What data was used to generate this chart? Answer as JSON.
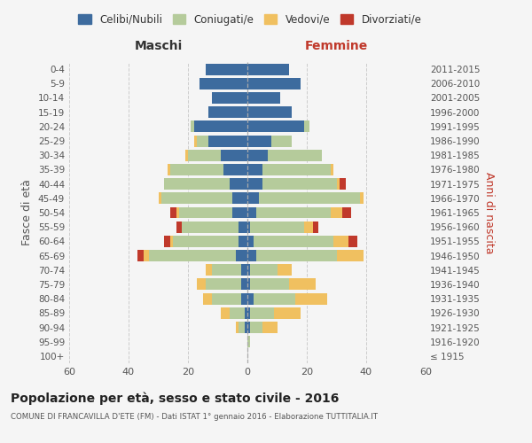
{
  "age_groups": [
    "100+",
    "95-99",
    "90-94",
    "85-89",
    "80-84",
    "75-79",
    "70-74",
    "65-69",
    "60-64",
    "55-59",
    "50-54",
    "45-49",
    "40-44",
    "35-39",
    "30-34",
    "25-29",
    "20-24",
    "15-19",
    "10-14",
    "5-9",
    "0-4"
  ],
  "birth_years": [
    "≤ 1915",
    "1916-1920",
    "1921-1925",
    "1926-1930",
    "1931-1935",
    "1936-1940",
    "1941-1945",
    "1946-1950",
    "1951-1955",
    "1956-1960",
    "1961-1965",
    "1966-1970",
    "1971-1975",
    "1976-1980",
    "1981-1985",
    "1986-1990",
    "1991-1995",
    "1996-2000",
    "2001-2005",
    "2006-2010",
    "2011-2015"
  ],
  "colors": {
    "celibi": "#3d6b9e",
    "coniugati": "#b5cb9b",
    "vedovi": "#f0c060",
    "divorziati": "#c0392b"
  },
  "maschi": {
    "celibi": [
      0,
      0,
      1,
      1,
      2,
      2,
      2,
      4,
      3,
      3,
      5,
      5,
      6,
      8,
      9,
      13,
      18,
      13,
      12,
      16,
      14
    ],
    "coniugati": [
      0,
      0,
      2,
      5,
      10,
      12,
      10,
      29,
      22,
      19,
      18,
      24,
      22,
      18,
      11,
      4,
      1,
      0,
      0,
      0,
      0
    ],
    "vedovi": [
      0,
      0,
      1,
      3,
      3,
      3,
      2,
      2,
      1,
      0,
      1,
      1,
      0,
      1,
      1,
      1,
      0,
      0,
      0,
      0,
      0
    ],
    "divorziati": [
      0,
      0,
      0,
      0,
      0,
      0,
      0,
      2,
      2,
      2,
      2,
      0,
      0,
      0,
      0,
      0,
      0,
      0,
      0,
      0,
      0
    ]
  },
  "femmine": {
    "celibi": [
      0,
      0,
      1,
      1,
      2,
      1,
      1,
      3,
      2,
      1,
      3,
      4,
      5,
      5,
      7,
      8,
      19,
      15,
      11,
      18,
      14
    ],
    "coniugati": [
      0,
      1,
      4,
      8,
      14,
      13,
      9,
      27,
      27,
      18,
      25,
      34,
      25,
      23,
      18,
      7,
      2,
      0,
      0,
      0,
      0
    ],
    "vedovi": [
      0,
      0,
      5,
      9,
      11,
      9,
      5,
      9,
      5,
      3,
      4,
      1,
      1,
      1,
      0,
      0,
      0,
      0,
      0,
      0,
      0
    ],
    "divorziati": [
      0,
      0,
      0,
      0,
      0,
      0,
      0,
      0,
      3,
      2,
      3,
      0,
      2,
      0,
      0,
      0,
      0,
      0,
      0,
      0,
      0
    ]
  },
  "title": "Popolazione per età, sesso e stato civile - 2016",
  "subtitle": "COMUNE DI FRANCAVILLA D'ETE (FM) - Dati ISTAT 1° gennaio 2016 - Elaborazione TUTTITALIA.IT",
  "xlabel_left": "Maschi",
  "xlabel_right": "Femmine",
  "ylabel_left": "Fasce di età",
  "ylabel_right": "Anni di nascita",
  "xlim": 60,
  "legend_labels": [
    "Celibi/Nubili",
    "Coniugati/e",
    "Vedovi/e",
    "Divorziati/e"
  ],
  "background_color": "#f5f5f5"
}
